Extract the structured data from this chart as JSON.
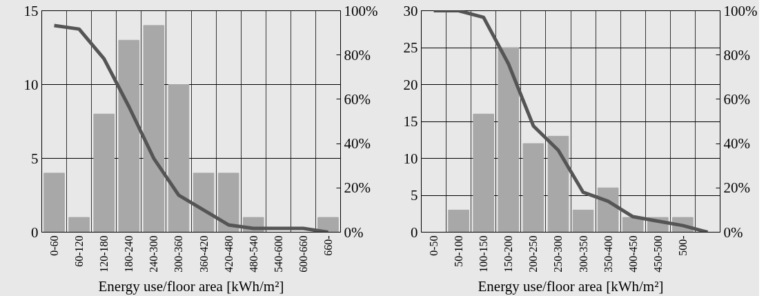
{
  "chart_data": [
    {
      "type": "bar",
      "xlabel": "Energy use/floor area [kWh/m²]",
      "categories": [
        "0-60",
        "60-120",
        "120-180",
        "180-240",
        "240-300",
        "300-360",
        "360-420",
        "420-480",
        "480-540",
        "540-600",
        "600-660",
        "660-"
      ],
      "series": [
        {
          "color": "#a8a8a8",
          "values": [
            4,
            1,
            8,
            13,
            14,
            10,
            4,
            4,
            1,
            0,
            0,
            1
          ]
        },
        {
          "type": "line",
          "axis": "y2",
          "color": "#555555",
          "values": [
            93.3,
            91.7,
            78.3,
            56.7,
            33.3,
            16.7,
            10,
            3.3,
            1.7,
            1.7,
            1.7,
            0
          ]
        }
      ],
      "ylim": [
        0,
        15
      ],
      "yticks": [
        0,
        5,
        10,
        15
      ],
      "y2lim": [
        0,
        100
      ],
      "y2ticks": [
        {
          "value": 0,
          "label": "0%"
        },
        {
          "value": 20,
          "label": "20%"
        },
        {
          "value": 40,
          "label": "40%"
        },
        {
          "value": 60,
          "label": "60%"
        },
        {
          "value": 80,
          "label": "80%"
        },
        {
          "value": 100,
          "label": "100%"
        }
      ],
      "grid": true,
      "marker": "none",
      "line_style": "solid"
    },
    {
      "type": "bar",
      "xlabel": "Energy use/floor area [kWh/m²]",
      "categories": [
        "0-50",
        "50-100",
        "100-150",
        "150-200",
        "200-250",
        "250-300",
        "300-350",
        "350-400",
        "400-450",
        "450-500",
        "500-",
        null
      ],
      "series": [
        {
          "color": "#a8a8a8",
          "values": [
            0,
            3,
            16,
            25,
            12,
            13,
            3,
            6,
            2,
            2,
            2,
            0
          ]
        },
        {
          "type": "line",
          "axis": "y2",
          "color": "#555555",
          "values": [
            100,
            100,
            97,
            76,
            48,
            37,
            18,
            14,
            7,
            5,
            3,
            0
          ]
        }
      ],
      "ylim": [
        0,
        30
      ],
      "yticks": [
        0,
        5,
        10,
        15,
        20,
        25,
        30
      ],
      "y2lim": [
        0,
        100
      ],
      "y2ticks": [
        {
          "value": 0,
          "label": "0%"
        },
        {
          "value": 20,
          "label": "20%"
        },
        {
          "value": 40,
          "label": "40%"
        },
        {
          "value": 60,
          "label": "60%"
        },
        {
          "value": 80,
          "label": "80%"
        },
        {
          "value": 100,
          "label": "100%"
        }
      ],
      "grid": true,
      "marker": "none",
      "line_style": "solid"
    }
  ]
}
